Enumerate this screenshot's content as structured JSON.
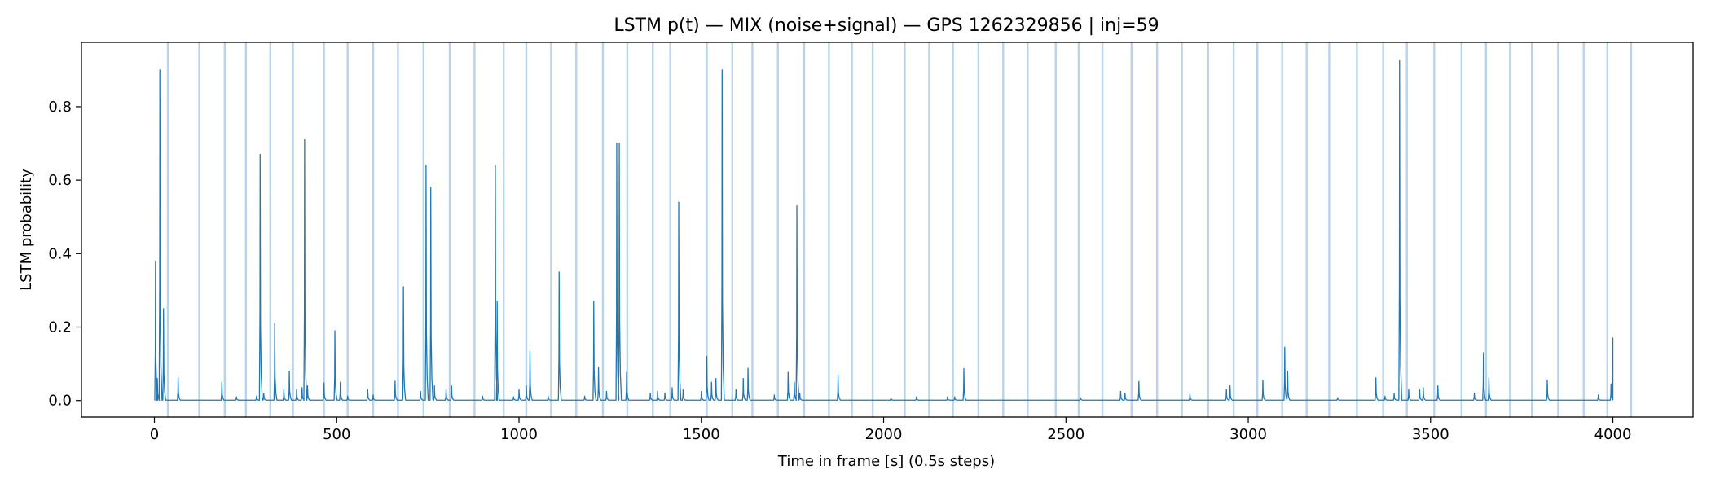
{
  "chart_data": {
    "type": "line",
    "title": "LSTM p(t) — MIX (noise+signal) — GPS 1262329856 | inj=59",
    "xlabel": "Time in frame [s] (0.5s steps)",
    "ylabel": "LSTM probability",
    "xlim": [
      -200,
      4220
    ],
    "ylim": [
      -0.045,
      0.975
    ],
    "x_ticks": [
      0,
      500,
      1000,
      1500,
      2000,
      2500,
      3000,
      3500,
      4000
    ],
    "x_tick_labels": [
      "0",
      "500",
      "1000",
      "1500",
      "2000",
      "2500",
      "3000",
      "3500",
      "4000"
    ],
    "y_ticks": [
      0.0,
      0.2,
      0.4,
      0.6,
      0.8
    ],
    "y_tick_labels": [
      "0.0",
      "0.2",
      "0.4",
      "0.6",
      "0.8"
    ],
    "grid": false,
    "legend": "none",
    "colors": {
      "line": "#1f77b4",
      "injection_band": "#b9d3ea",
      "frame": "#000000"
    },
    "injection_times": [
      37,
      123,
      193,
      251,
      318,
      380,
      465,
      530,
      600,
      668,
      738,
      810,
      878,
      958,
      1020,
      1088,
      1157,
      1230,
      1297,
      1367,
      1415,
      1515,
      1585,
      1640,
      1710,
      1782,
      1850,
      1913,
      1970,
      2058,
      2125,
      2190,
      2260,
      2328,
      2395,
      2472,
      2535,
      2600,
      2680,
      2750,
      2818,
      2890,
      2960,
      3025,
      3093,
      3160,
      3222,
      3298,
      3370,
      3435,
      3510,
      3585,
      3652,
      3718,
      3778,
      3850,
      3920,
      3985,
      4050
    ],
    "series": [
      {
        "baseline": 0.001,
        "peaks": [
          [
            3,
            0.38
          ],
          [
            8,
            0.06
          ],
          [
            15,
            0.9
          ],
          [
            25,
            0.25
          ],
          [
            65,
            0.063
          ],
          [
            185,
            0.05
          ],
          [
            225,
            0.01
          ],
          [
            280,
            0.012
          ],
          [
            290,
            0.67
          ],
          [
            300,
            0.02
          ],
          [
            330,
            0.21
          ],
          [
            355,
            0.03
          ],
          [
            370,
            0.08
          ],
          [
            390,
            0.03
          ],
          [
            405,
            0.035
          ],
          [
            412,
            0.71
          ],
          [
            420,
            0.04
          ],
          [
            465,
            0.048
          ],
          [
            495,
            0.19
          ],
          [
            510,
            0.05
          ],
          [
            530,
            0.012
          ],
          [
            585,
            0.03
          ],
          [
            600,
            0.015
          ],
          [
            660,
            0.053
          ],
          [
            683,
            0.31
          ],
          [
            730,
            0.025
          ],
          [
            745,
            0.64
          ],
          [
            758,
            0.58
          ],
          [
            768,
            0.04
          ],
          [
            800,
            0.03
          ],
          [
            815,
            0.04
          ],
          [
            900,
            0.012
          ],
          [
            935,
            0.64
          ],
          [
            940,
            0.27
          ],
          [
            985,
            0.01
          ],
          [
            1000,
            0.03
          ],
          [
            1020,
            0.04
          ],
          [
            1030,
            0.135
          ],
          [
            1080,
            0.012
          ],
          [
            1110,
            0.35
          ],
          [
            1180,
            0.012
          ],
          [
            1205,
            0.27
          ],
          [
            1218,
            0.09
          ],
          [
            1240,
            0.025
          ],
          [
            1268,
            0.7
          ],
          [
            1275,
            0.7
          ],
          [
            1295,
            0.077
          ],
          [
            1360,
            0.02
          ],
          [
            1380,
            0.025
          ],
          [
            1400,
            0.02
          ],
          [
            1420,
            0.035
          ],
          [
            1438,
            0.54
          ],
          [
            1450,
            0.03
          ],
          [
            1500,
            0.025
          ],
          [
            1515,
            0.12
          ],
          [
            1528,
            0.05
          ],
          [
            1540,
            0.06
          ],
          [
            1557,
            0.9
          ],
          [
            1595,
            0.03
          ],
          [
            1615,
            0.06
          ],
          [
            1628,
            0.088
          ],
          [
            1700,
            0.015
          ],
          [
            1738,
            0.077
          ],
          [
            1755,
            0.05
          ],
          [
            1762,
            0.53
          ],
          [
            1770,
            0.02
          ],
          [
            1875,
            0.07
          ],
          [
            2020,
            0.007
          ],
          [
            2090,
            0.01
          ],
          [
            2175,
            0.01
          ],
          [
            2195,
            0.01
          ],
          [
            2220,
            0.087
          ],
          [
            2540,
            0.008
          ],
          [
            2650,
            0.025
          ],
          [
            2662,
            0.02
          ],
          [
            2700,
            0.052
          ],
          [
            2840,
            0.018
          ],
          [
            2940,
            0.03
          ],
          [
            2950,
            0.04
          ],
          [
            3040,
            0.055
          ],
          [
            3100,
            0.145
          ],
          [
            3108,
            0.08
          ],
          [
            3245,
            0.008
          ],
          [
            3350,
            0.062
          ],
          [
            3375,
            0.012
          ],
          [
            3400,
            0.02
          ],
          [
            3415,
            0.925
          ],
          [
            3440,
            0.03
          ],
          [
            3470,
            0.03
          ],
          [
            3480,
            0.035
          ],
          [
            3520,
            0.04
          ],
          [
            3620,
            0.02
          ],
          [
            3645,
            0.13
          ],
          [
            3660,
            0.062
          ],
          [
            3820,
            0.055
          ],
          [
            3960,
            0.015
          ],
          [
            3995,
            0.045
          ],
          [
            4000,
            0.17
          ]
        ]
      }
    ]
  }
}
